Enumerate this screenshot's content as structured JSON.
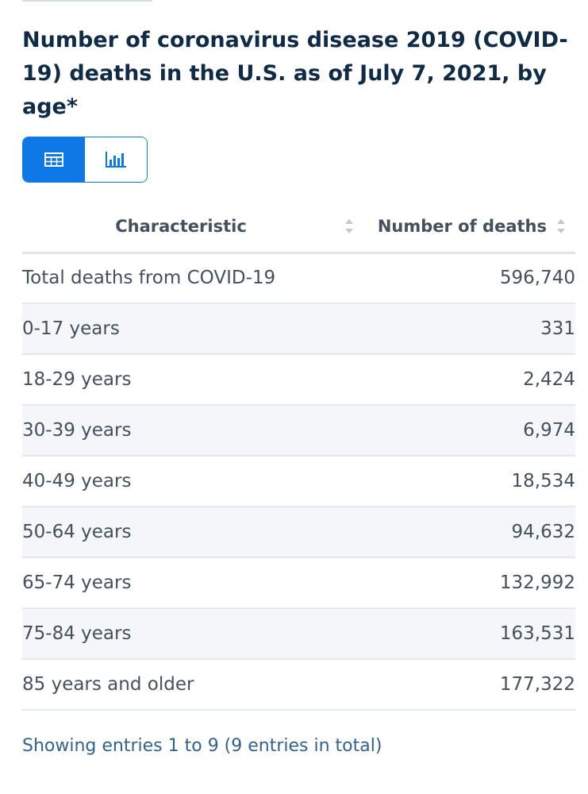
{
  "title": "Number of coronavirus disease 2019 (COVID-19) deaths in the U.S. as of July 7, 2021, by age*",
  "view_toggle": {
    "options": [
      {
        "icon": "table-icon",
        "active": true
      },
      {
        "icon": "bar-chart-icon",
        "active": false
      }
    ]
  },
  "table": {
    "columns": [
      "Characteristic",
      "Number of deaths"
    ],
    "rows": [
      {
        "label": "Total deaths from COVID-19",
        "value": "596,740"
      },
      {
        "label": "0-17 years",
        "value": "331"
      },
      {
        "label": "18-29 years",
        "value": "2,424"
      },
      {
        "label": "30-39 years",
        "value": "6,974"
      },
      {
        "label": "40-49 years",
        "value": "18,534"
      },
      {
        "label": "50-64 years",
        "value": "94,632"
      },
      {
        "label": "65-74 years",
        "value": "132,992"
      },
      {
        "label": "75-84 years",
        "value": "163,531"
      },
      {
        "label": "85 years and older",
        "value": "177,322"
      }
    ]
  },
  "footer": {
    "entries_info": "Showing entries 1 to 9 (9 entries in total)"
  },
  "colors": {
    "accent": "#0e78e6",
    "title": "#0f2b46",
    "text": "#44505e",
    "link": "#31638c"
  }
}
